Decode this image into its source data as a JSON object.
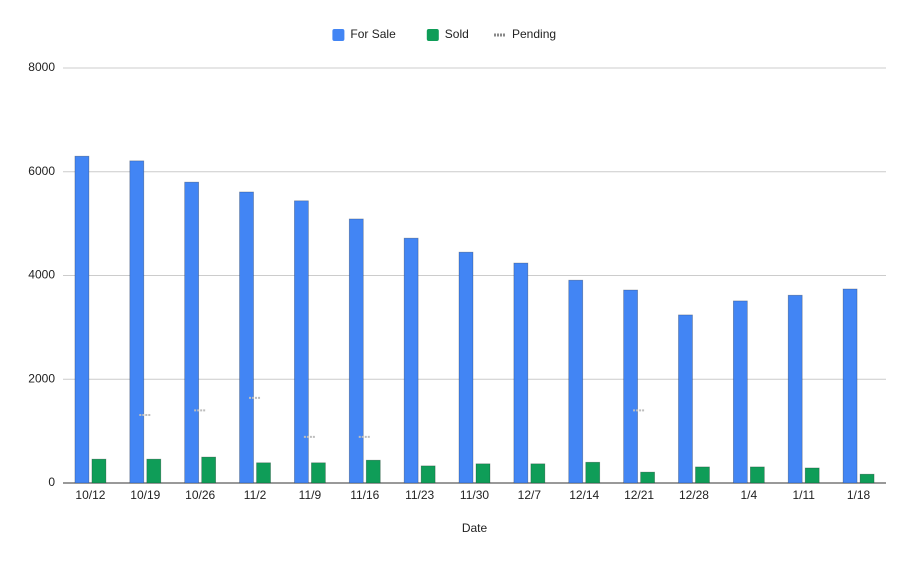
{
  "chart_data": {
    "type": "bar",
    "xlabel": "Date",
    "categories": [
      "10/12",
      "10/19",
      "10/26",
      "11/2",
      "11/9",
      "11/16",
      "11/23",
      "11/30",
      "12/7",
      "12/14",
      "12/21",
      "12/28",
      "1/4",
      "1/11",
      "1/18"
    ],
    "series": [
      {
        "name": "For Sale",
        "color": "#4285f4",
        "values": [
          6300,
          6210,
          5800,
          5610,
          5440,
          5090,
          4720,
          4450,
          4240,
          3910,
          3720,
          3240,
          3510,
          3620,
          3740
        ]
      },
      {
        "name": "Sold",
        "color": "#0f9d58",
        "values": [
          460,
          460,
          500,
          390,
          390,
          440,
          330,
          370,
          370,
          400,
          210,
          310,
          310,
          290,
          170
        ]
      },
      {
        "name": "Pending",
        "type": "line",
        "color": "#bdbdbd",
        "values": [
          null,
          1310,
          1400,
          1640,
          890,
          890,
          null,
          null,
          null,
          null,
          1400,
          null,
          null,
          null,
          null
        ]
      }
    ],
    "ylim": [
      0,
      8000
    ],
    "yticks": [
      0,
      2000,
      4000,
      6000,
      8000
    ],
    "grid": true,
    "legend": "top"
  }
}
